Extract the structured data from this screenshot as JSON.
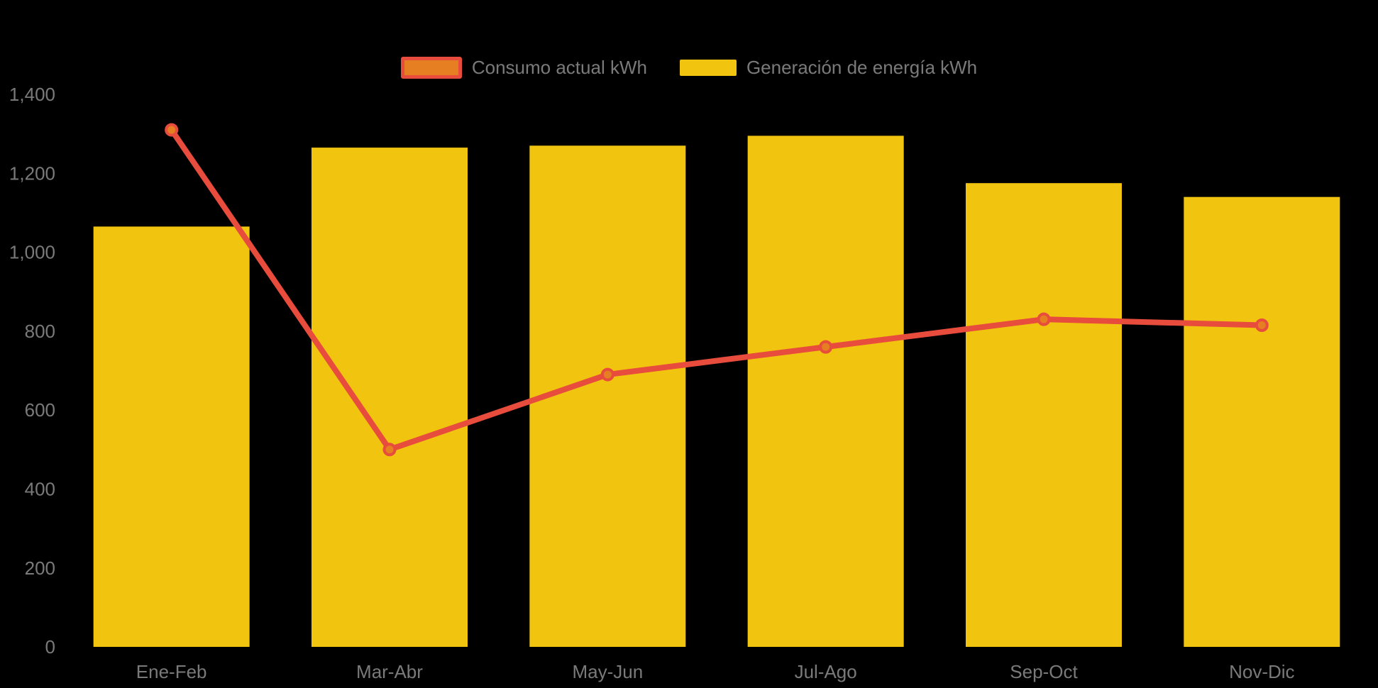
{
  "chart_data": {
    "type": "bar+line",
    "title": "",
    "categories": [
      "Ene-Feb",
      "Mar-Abr",
      "May-Jun",
      "Jul-Ago",
      "Sep-Oct",
      "Nov-Dic"
    ],
    "series": [
      {
        "name": "Consumo actual kWh",
        "type": "line",
        "values": [
          1310,
          500,
          690,
          760,
          830,
          815
        ],
        "color": "#E74C3C",
        "point_color": "#E67E22"
      },
      {
        "name": "Generación de energía kWh",
        "type": "bar",
        "values": [
          1065,
          1265,
          1270,
          1295,
          1175,
          1140
        ],
        "color": "#F1C40F"
      }
    ],
    "xlabel": "",
    "ylabel": "",
    "ylim": [
      0,
      1400
    ],
    "y_ticks": [
      0,
      200,
      400,
      600,
      800,
      1000,
      1200,
      1400
    ],
    "y_tick_labels": [
      "0",
      "200",
      "400",
      "600",
      "800",
      "1,000",
      "1,200",
      "1,400"
    ],
    "grid": false,
    "legend_position": "top-center",
    "axis_label_color": "#7A7A7A",
    "background": "#000000"
  },
  "legend": {
    "items": [
      {
        "label": "Consumo actual kWh"
      },
      {
        "label": "Generación de energía kWh"
      }
    ]
  }
}
